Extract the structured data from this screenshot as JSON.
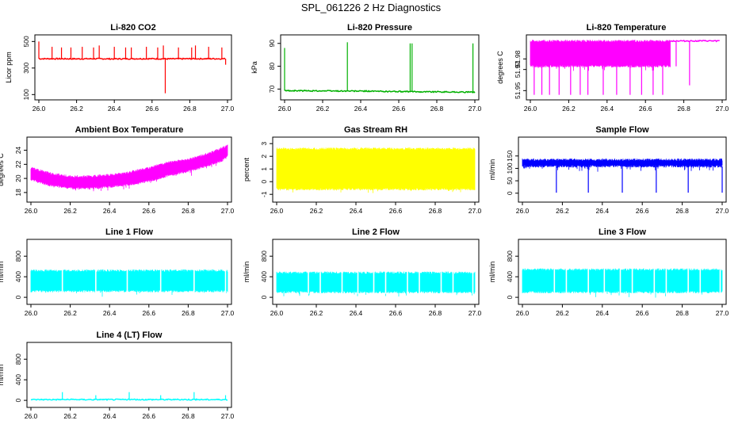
{
  "page": {
    "title": "SPL_061226  2 Hz Diagnostics"
  },
  "chart_data": [
    {
      "type": "line",
      "title": "Li-820 CO2",
      "ylabel": "Licor ppm",
      "color": "#ff0000",
      "xlim": [
        26.0,
        27.0
      ],
      "ylim": [
        90,
        520
      ],
      "x_ticks": [
        "26.0",
        "26.2",
        "26.4",
        "26.6",
        "26.8",
        "27.0"
      ],
      "y_ticks": [
        {
          "value": 100,
          "label": "100"
        },
        {
          "value": 300,
          "label": "300"
        },
        {
          "value": 500,
          "label": "500"
        }
      ],
      "series": [
        {
          "name": "baseline",
          "x": [
            26.0,
            26.1,
            26.2,
            26.3,
            26.4,
            26.5,
            26.6,
            26.7,
            26.8,
            26.9,
            26.99
          ],
          "y": [
            370,
            370,
            369,
            370,
            369,
            370,
            370,
            369,
            370,
            370,
            370
          ]
        },
        {
          "name": "spikes",
          "x": [
            26.0,
            26.07,
            26.12,
            26.17,
            26.23,
            26.29,
            26.32,
            26.4,
            26.46,
            26.49,
            26.57,
            26.63,
            26.66,
            26.67,
            26.74,
            26.81,
            26.83,
            26.9,
            26.97,
            26.99
          ],
          "y": [
            500,
            460,
            455,
            455,
            460,
            455,
            470,
            460,
            455,
            455,
            460,
            455,
            470,
            110,
            455,
            455,
            470,
            460,
            455,
            325
          ]
        }
      ]
    },
    {
      "type": "line",
      "title": "Li-820 Pressure",
      "ylabel": "kPa",
      "color": "#00b000",
      "xlim": [
        26.0,
        27.0
      ],
      "ylim": [
        67,
        92
      ],
      "x_ticks": [
        "26.0",
        "26.2",
        "26.4",
        "26.6",
        "26.8",
        "27.0"
      ],
      "y_ticks": [
        {
          "value": 70,
          "label": "70"
        },
        {
          "value": 80,
          "label": "80"
        },
        {
          "value": 90,
          "label": "90"
        }
      ],
      "series": [
        {
          "name": "pressure",
          "x": [
            26.0,
            26.2,
            26.4,
            26.6,
            26.8,
            27.0
          ],
          "y": [
            69.3,
            69.2,
            69.1,
            68.9,
            68.8,
            68.6
          ]
        },
        {
          "name": "spikes",
          "x": [
            26.0,
            26.33,
            26.66,
            26.67,
            26.99
          ],
          "y": [
            88,
            90.5,
            90,
            90,
            90
          ]
        }
      ]
    },
    {
      "type": "line",
      "title": "Li-820 Temperature",
      "ylabel": "degrees C",
      "color": "#ff00ff",
      "xlim": [
        26.0,
        27.0
      ],
      "ylim": [
        51.945,
        51.999
      ],
      "x_ticks": [
        "26.0",
        "26.2",
        "26.4",
        "26.6",
        "26.8",
        "27.0"
      ],
      "y_ticks": [
        {
          "value": 51.95,
          "label": "51.95"
        },
        {
          "value": 51.97,
          "label": "51.97"
        },
        {
          "value": 51.98,
          "label": "51.98"
        }
      ],
      "band": {
        "x_start": 26.0,
        "x_end": 26.73,
        "upper": 51.997,
        "lower": 51.973
      },
      "series": [
        {
          "name": "upper",
          "x": [
            26.73,
            26.99
          ],
          "y": [
            51.997,
            51.997
          ]
        },
        {
          "name": "drops",
          "x": [
            26.02,
            26.06,
            26.1,
            26.15,
            26.21,
            26.26,
            26.3,
            26.38,
            26.45,
            26.52,
            26.58,
            26.64,
            26.69,
            26.76,
            26.83
          ],
          "y": [
            51.946,
            51.946,
            51.946,
            51.946,
            51.946,
            51.946,
            51.946,
            51.946,
            51.946,
            51.946,
            51.946,
            51.946,
            51.946,
            51.973,
            51.955
          ]
        }
      ]
    },
    {
      "type": "line",
      "title": "Ambient Box Temperature",
      "ylabel": "degrees C",
      "color": "#ff00ff",
      "xlim": [
        26.0,
        27.0
      ],
      "ylim": [
        17.2,
        25.3
      ],
      "x_ticks": [
        "26.0",
        "26.2",
        "26.4",
        "26.6",
        "26.8",
        "27.0"
      ],
      "y_ticks": [
        {
          "value": 18,
          "label": "18"
        },
        {
          "value": 20,
          "label": "20"
        },
        {
          "value": 22,
          "label": "22"
        },
        {
          "value": 24,
          "label": "24"
        }
      ],
      "band": {
        "x": [
          26.0,
          26.1,
          26.2,
          26.3,
          26.4,
          26.5,
          26.6,
          26.7,
          26.8,
          26.9,
          26.97,
          27.0
        ],
        "upper": [
          21.5,
          20.7,
          20.3,
          20.3,
          20.5,
          20.9,
          21.5,
          22.3,
          22.7,
          23.5,
          24.3,
          24.7
        ],
        "lower": [
          19.8,
          19.0,
          18.6,
          18.6,
          18.8,
          19.1,
          19.6,
          20.4,
          21.0,
          21.8,
          22.5,
          23.1
        ]
      }
    },
    {
      "type": "line",
      "title": "Gas Stream RH",
      "ylabel": "percent",
      "color": "#ffff00",
      "xlim": [
        26.0,
        27.0
      ],
      "ylim": [
        -1.3,
        3.2
      ],
      "x_ticks": [
        "26.0",
        "26.2",
        "26.4",
        "26.6",
        "26.8",
        "27.0"
      ],
      "y_ticks": [
        {
          "value": -1,
          "label": "-1"
        },
        {
          "value": 0,
          "label": "0"
        },
        {
          "value": 1,
          "label": "1"
        },
        {
          "value": 2,
          "label": "2"
        },
        {
          "value": 3,
          "label": "3"
        }
      ],
      "band": {
        "x": [
          26.0,
          27.0
        ],
        "upper": [
          2.6,
          2.6
        ],
        "lower": [
          -0.6,
          -0.6
        ]
      }
    },
    {
      "type": "line",
      "title": "Sample Flow",
      "ylabel": "ml/min",
      "color": "#0000ff",
      "xlim": [
        26.0,
        27.0
      ],
      "ylim": [
        -20,
        210
      ],
      "x_ticks": [
        "26.0",
        "26.2",
        "26.4",
        "26.6",
        "26.8",
        "27.0"
      ],
      "y_ticks": [
        {
          "value": 0,
          "label": "0"
        },
        {
          "value": 50,
          "label": "50"
        },
        {
          "value": 100,
          "label": "100"
        },
        {
          "value": 150,
          "label": "150"
        }
      ],
      "band": {
        "x": [
          26.0,
          27.0
        ],
        "upper": [
          135,
          135
        ],
        "lower": [
          108,
          108
        ]
      },
      "series": [
        {
          "name": "dropouts",
          "x": [
            26.17,
            26.33,
            26.5,
            26.67,
            26.83,
            27.0
          ],
          "y": [
            2,
            2,
            2,
            2,
            2,
            2
          ]
        }
      ]
    },
    {
      "type": "line",
      "title": "Line 1 Flow",
      "ylabel": "ml/min",
      "color": "#00ffff",
      "xlim": [
        26.0,
        27.0
      ],
      "ylim": [
        -60,
        1050
      ],
      "x_ticks": [
        "26.0",
        "26.2",
        "26.4",
        "26.6",
        "26.8",
        "27.0"
      ],
      "y_ticks": [
        {
          "value": 0,
          "label": "0"
        },
        {
          "value": 400,
          "label": "400"
        },
        {
          "value": 800,
          "label": "800"
        }
      ],
      "band": {
        "x": [
          26.0,
          27.0
        ],
        "upper": [
          520,
          520
        ],
        "lower": [
          120,
          120
        ]
      },
      "gaps_x": [
        26.16,
        26.33,
        26.49,
        26.66,
        26.83,
        26.99
      ]
    },
    {
      "type": "line",
      "title": "Line 2 Flow",
      "ylabel": "ml/min",
      "color": "#00ffff",
      "xlim": [
        26.0,
        27.0
      ],
      "ylim": [
        -60,
        1050
      ],
      "x_ticks": [
        "26.0",
        "26.2",
        "26.4",
        "26.6",
        "26.8",
        "27.0"
      ],
      "y_ticks": [
        {
          "value": 0,
          "label": "0"
        },
        {
          "value": 400,
          "label": "400"
        },
        {
          "value": 800,
          "label": "800"
        }
      ],
      "band": {
        "x": [
          26.0,
          27.0
        ],
        "upper": [
          480,
          480
        ],
        "lower": [
          100,
          100
        ]
      },
      "gaps_x": [
        26.16,
        26.22,
        26.33,
        26.41,
        26.49,
        26.55,
        26.66,
        26.72,
        26.83,
        26.89,
        26.99
      ]
    },
    {
      "type": "line",
      "title": "Line 3 Flow",
      "ylabel": "ml/min",
      "color": "#00ffff",
      "xlim": [
        26.0,
        27.0
      ],
      "ylim": [
        -60,
        1050
      ],
      "x_ticks": [
        "26.0",
        "26.2",
        "26.4",
        "26.6",
        "26.8",
        "27.0"
      ],
      "y_ticks": [
        {
          "value": 0,
          "label": "0"
        },
        {
          "value": 400,
          "label": "400"
        },
        {
          "value": 800,
          "label": "800"
        }
      ],
      "band": {
        "x": [
          26.0,
          27.0
        ],
        "upper": [
          540,
          540
        ],
        "lower": [
          100,
          100
        ]
      },
      "gaps_x": [
        26.16,
        26.22,
        26.33,
        26.41,
        26.49,
        26.55,
        26.66,
        26.72,
        26.83,
        26.89,
        26.99
      ]
    },
    {
      "type": "line",
      "title": "Line 4 (LT) Flow",
      "ylabel": "ml/min",
      "color": "#00ffff",
      "xlim": [
        26.0,
        27.0
      ],
      "ylim": [
        -60,
        1050
      ],
      "x_ticks": [
        "26.0",
        "26.2",
        "26.4",
        "26.6",
        "26.8",
        "27.0"
      ],
      "y_ticks": [
        {
          "value": 0,
          "label": "0"
        },
        {
          "value": 400,
          "label": "400"
        },
        {
          "value": 800,
          "label": "800"
        }
      ],
      "series": [
        {
          "name": "baseline",
          "x": [
            26.0,
            26.5,
            27.0
          ],
          "y": [
            15,
            15,
            15
          ]
        },
        {
          "name": "spikes",
          "x": [
            26.16,
            26.33,
            26.5,
            26.66,
            26.83,
            26.99
          ],
          "y": [
            160,
            100,
            160,
            100,
            160,
            100
          ]
        }
      ]
    }
  ]
}
